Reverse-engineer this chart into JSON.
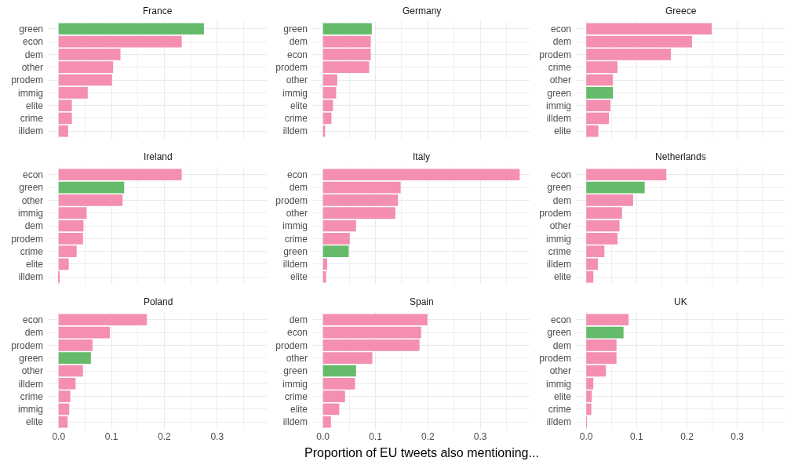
{
  "chart_data": [
    {
      "type": "bar",
      "orientation": "horizontal",
      "title": "France",
      "categories": [
        "green",
        "econ",
        "dem",
        "other",
        "prodem",
        "immig",
        "elite",
        "crime",
        "illdem"
      ],
      "values": [
        0.275,
        0.233,
        0.117,
        0.103,
        0.101,
        0.055,
        0.025,
        0.025,
        0.018
      ],
      "colors": [
        "#66bb6a",
        "#f48fb1",
        "#f48fb1",
        "#f48fb1",
        "#f48fb1",
        "#f48fb1",
        "#f48fb1",
        "#f48fb1",
        "#f48fb1"
      ],
      "xlim": [
        -0.019,
        0.394
      ],
      "xticks": [
        0,
        0.1,
        0.2,
        0.3
      ],
      "grid": true,
      "tick_labels": "y"
    },
    {
      "type": "bar",
      "orientation": "horizontal",
      "title": "Germany",
      "categories": [
        "green",
        "dem",
        "econ",
        "prodem",
        "other",
        "immig",
        "elite",
        "crime",
        "illdem"
      ],
      "values": [
        0.093,
        0.091,
        0.091,
        0.088,
        0.027,
        0.025,
        0.019,
        0.016,
        0.004
      ],
      "colors": [
        "#66bb6a",
        "#f48fb1",
        "#f48fb1",
        "#f48fb1",
        "#f48fb1",
        "#f48fb1",
        "#f48fb1",
        "#f48fb1",
        "#f48fb1"
      ],
      "xlim": [
        -0.019,
        0.394
      ],
      "xticks": [
        0,
        0.1,
        0.2,
        0.3
      ],
      "grid": true,
      "tick_labels": "y"
    },
    {
      "type": "bar",
      "orientation": "horizontal",
      "title": "Greece",
      "categories": [
        "econ",
        "dem",
        "prodem",
        "crime",
        "other",
        "green",
        "immig",
        "illdem",
        "elite"
      ],
      "values": [
        0.249,
        0.21,
        0.168,
        0.062,
        0.053,
        0.053,
        0.048,
        0.045,
        0.024
      ],
      "colors": [
        "#f48fb1",
        "#f48fb1",
        "#f48fb1",
        "#f48fb1",
        "#f48fb1",
        "#66bb6a",
        "#f48fb1",
        "#f48fb1",
        "#f48fb1"
      ],
      "xlim": [
        -0.019,
        0.394
      ],
      "xticks": [
        0,
        0.1,
        0.2,
        0.3
      ],
      "grid": true,
      "tick_labels": "y"
    },
    {
      "type": "bar",
      "orientation": "horizontal",
      "title": "Ireland",
      "categories": [
        "econ",
        "green",
        "other",
        "immig",
        "dem",
        "prodem",
        "crime",
        "elite",
        "illdem"
      ],
      "values": [
        0.233,
        0.124,
        0.121,
        0.053,
        0.047,
        0.046,
        0.034,
        0.019,
        0.002
      ],
      "colors": [
        "#f48fb1",
        "#66bb6a",
        "#f48fb1",
        "#f48fb1",
        "#f48fb1",
        "#f48fb1",
        "#f48fb1",
        "#f48fb1",
        "#f48fb1"
      ],
      "xlim": [
        -0.019,
        0.394
      ],
      "xticks": [
        0,
        0.1,
        0.2,
        0.3
      ],
      "grid": true,
      "tick_labels": "y"
    },
    {
      "type": "bar",
      "orientation": "horizontal",
      "title": "Italy",
      "categories": [
        "econ",
        "dem",
        "prodem",
        "other",
        "immig",
        "crime",
        "green",
        "illdem",
        "elite"
      ],
      "values": [
        0.375,
        0.148,
        0.143,
        0.138,
        0.063,
        0.051,
        0.049,
        0.008,
        0.006
      ],
      "colors": [
        "#f48fb1",
        "#f48fb1",
        "#f48fb1",
        "#f48fb1",
        "#f48fb1",
        "#f48fb1",
        "#66bb6a",
        "#f48fb1",
        "#f48fb1"
      ],
      "xlim": [
        -0.019,
        0.394
      ],
      "xticks": [
        0,
        0.1,
        0.2,
        0.3
      ],
      "grid": true,
      "tick_labels": "y"
    },
    {
      "type": "bar",
      "orientation": "horizontal",
      "title": "Netherlands",
      "categories": [
        "econ",
        "green",
        "dem",
        "prodem",
        "other",
        "immig",
        "crime",
        "illdem",
        "elite"
      ],
      "values": [
        0.159,
        0.116,
        0.093,
        0.071,
        0.066,
        0.062,
        0.036,
        0.023,
        0.014
      ],
      "colors": [
        "#f48fb1",
        "#66bb6a",
        "#f48fb1",
        "#f48fb1",
        "#f48fb1",
        "#f48fb1",
        "#f48fb1",
        "#f48fb1",
        "#f48fb1"
      ],
      "xlim": [
        -0.019,
        0.394
      ],
      "xticks": [
        0,
        0.1,
        0.2,
        0.3
      ],
      "grid": true,
      "tick_labels": "y"
    },
    {
      "type": "bar",
      "orientation": "horizontal",
      "title": "Poland",
      "categories": [
        "econ",
        "dem",
        "prodem",
        "green",
        "other",
        "illdem",
        "crime",
        "immig",
        "elite"
      ],
      "values": [
        0.167,
        0.097,
        0.064,
        0.061,
        0.046,
        0.032,
        0.022,
        0.02,
        0.017
      ],
      "colors": [
        "#f48fb1",
        "#f48fb1",
        "#f48fb1",
        "#66bb6a",
        "#f48fb1",
        "#f48fb1",
        "#f48fb1",
        "#f48fb1",
        "#f48fb1"
      ],
      "xlim": [
        -0.019,
        0.394
      ],
      "xticks": [
        {
          "value": 0,
          "label": "0.0"
        },
        {
          "value": 0.1,
          "label": "0.1"
        },
        {
          "value": 0.2,
          "label": "0.2"
        },
        {
          "value": 0.3,
          "label": "0.3"
        }
      ],
      "grid": true
    },
    {
      "type": "bar",
      "orientation": "horizontal",
      "title": "Spain",
      "xlabel": "Proportion of EU tweets also mentioning...",
      "categories": [
        "dem",
        "econ",
        "prodem",
        "other",
        "green",
        "immig",
        "crime",
        "elite",
        "illdem"
      ],
      "values": [
        0.199,
        0.187,
        0.184,
        0.094,
        0.063,
        0.061,
        0.042,
        0.031,
        0.015
      ],
      "colors": [
        "#f48fb1",
        "#f48fb1",
        "#f48fb1",
        "#f48fb1",
        "#66bb6a",
        "#f48fb1",
        "#f48fb1",
        "#f48fb1",
        "#f48fb1"
      ],
      "xlim": [
        -0.019,
        0.394
      ],
      "xticks": [
        {
          "value": 0,
          "label": "0.0"
        },
        {
          "value": 0.1,
          "label": "0.1"
        },
        {
          "value": 0.2,
          "label": "0.2"
        },
        {
          "value": 0.3,
          "label": "0.3"
        }
      ],
      "grid": true
    },
    {
      "type": "bar",
      "orientation": "horizontal",
      "title": "UK",
      "categories": [
        "econ",
        "green",
        "dem",
        "prodem",
        "other",
        "immig",
        "elite",
        "crime",
        "illdem"
      ],
      "values": [
        0.084,
        0.074,
        0.06,
        0.06,
        0.039,
        0.014,
        0.011,
        0.01,
        0.001
      ],
      "colors": [
        "#f48fb1",
        "#66bb6a",
        "#f48fb1",
        "#f48fb1",
        "#f48fb1",
        "#f48fb1",
        "#f48fb1",
        "#f48fb1",
        "#f48fb1"
      ],
      "xlim": [
        -0.019,
        0.394
      ],
      "xticks": [
        {
          "value": 0,
          "label": "0.0"
        },
        {
          "value": 0.1,
          "label": "0.1"
        },
        {
          "value": 0.2,
          "label": "0.2"
        },
        {
          "value": 0.3,
          "label": "0.3"
        }
      ],
      "grid": true
    }
  ]
}
